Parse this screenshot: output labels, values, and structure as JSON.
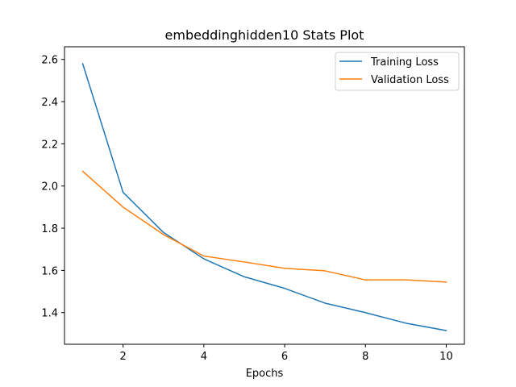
{
  "chart_data": {
    "type": "line",
    "title": "embeddinghidden10 Stats Plot",
    "xlabel": "Epochs",
    "ylabel": "",
    "x": [
      1,
      2,
      3,
      4,
      5,
      6,
      7,
      8,
      9,
      10
    ],
    "xlim": [
      0.55,
      10.45
    ],
    "ylim": [
      1.25,
      2.66
    ],
    "xticks": [
      2,
      4,
      6,
      8,
      10
    ],
    "yticks": [
      1.4,
      1.6,
      1.8,
      2.0,
      2.2,
      2.4,
      2.6
    ],
    "grid": false,
    "legend_position": "top-right",
    "series": [
      {
        "name": "Training Loss",
        "color": "#1f77b4",
        "values": [
          2.58,
          1.97,
          1.78,
          1.655,
          1.57,
          1.515,
          1.445,
          1.4,
          1.35,
          1.315
        ]
      },
      {
        "name": "Validation Loss",
        "color": "#ff7f0e",
        "values": [
          2.07,
          1.9,
          1.77,
          1.668,
          1.64,
          1.61,
          1.598,
          1.555,
          1.555,
          1.545
        ]
      }
    ]
  }
}
